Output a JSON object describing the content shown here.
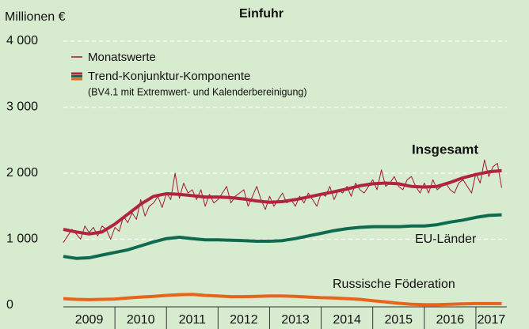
{
  "chart_data": {
    "type": "line",
    "title": "Einfuhr",
    "y_label": "Millionen €",
    "legend_subtitle": "(BV4.1 mit Extremwert- und Kalenderbereinigung)",
    "legend_trend": "Trend-Konjunktur-Komponente",
    "xlim": [
      2009,
      2017.6
    ],
    "xticks": [
      2009,
      2010,
      2011,
      2012,
      2013,
      2014,
      2015,
      2016,
      2017
    ],
    "ylim": [
      0,
      4000
    ],
    "yticks": [
      {
        "value": 0,
        "label": "0"
      },
      {
        "value": 1000,
        "label": "1 000"
      },
      {
        "value": 2000,
        "label": "2 000"
      },
      {
        "value": 3000,
        "label": "3 000"
      },
      {
        "value": 4000,
        "label": "4 000"
      }
    ],
    "grid": true,
    "series": [
      {
        "name": "Monatswerte",
        "color": "#9e1b32",
        "width": 1,
        "x": [
          2009.0,
          2009.083,
          2009.167,
          2009.25,
          2009.333,
          2009.417,
          2009.5,
          2009.583,
          2009.667,
          2009.75,
          2009.833,
          2009.917,
          2010.0,
          2010.083,
          2010.167,
          2010.25,
          2010.333,
          2010.417,
          2010.5,
          2010.583,
          2010.667,
          2010.75,
          2010.833,
          2010.917,
          2011.0,
          2011.083,
          2011.167,
          2011.25,
          2011.333,
          2011.417,
          2011.5,
          2011.583,
          2011.667,
          2011.75,
          2011.833,
          2011.917,
          2012.0,
          2012.083,
          2012.167,
          2012.25,
          2012.333,
          2012.417,
          2012.5,
          2012.583,
          2012.667,
          2012.75,
          2012.833,
          2012.917,
          2013.0,
          2013.083,
          2013.167,
          2013.25,
          2013.333,
          2013.417,
          2013.5,
          2013.583,
          2013.667,
          2013.75,
          2013.833,
          2013.917,
          2014.0,
          2014.083,
          2014.167,
          2014.25,
          2014.333,
          2014.417,
          2014.5,
          2014.583,
          2014.667,
          2014.75,
          2014.833,
          2014.917,
          2015.0,
          2015.083,
          2015.167,
          2015.25,
          2015.333,
          2015.417,
          2015.5,
          2015.583,
          2015.667,
          2015.75,
          2015.833,
          2015.917,
          2016.0,
          2016.083,
          2016.167,
          2016.25,
          2016.333,
          2016.417,
          2016.5,
          2016.583,
          2016.667,
          2016.75,
          2016.833,
          2016.917,
          2017.0,
          2017.083,
          2017.167,
          2017.25,
          2017.333,
          2017.417,
          2017.5
        ],
        "values": [
          950,
          1050,
          1150,
          1080,
          1000,
          1200,
          1100,
          1180,
          1050,
          1200,
          1150,
          1000,
          1180,
          1120,
          1350,
          1250,
          1400,
          1300,
          1600,
          1350,
          1500,
          1550,
          1650,
          1480,
          1700,
          1600,
          2000,
          1620,
          1850,
          1700,
          1750,
          1600,
          1750,
          1500,
          1680,
          1550,
          1600,
          1700,
          1800,
          1550,
          1650,
          1700,
          1750,
          1500,
          1650,
          1800,
          1600,
          1450,
          1650,
          1500,
          1600,
          1700,
          1550,
          1600,
          1500,
          1650,
          1550,
          1700,
          1600,
          1500,
          1700,
          1650,
          1800,
          1600,
          1750,
          1700,
          1800,
          1650,
          1850,
          1750,
          1700,
          1800,
          1900,
          1750,
          2050,
          1800,
          1850,
          1950,
          1800,
          1750,
          1900,
          1950,
          1800,
          1700,
          1850,
          1700,
          1900,
          1750,
          1800,
          1850,
          1750,
          1700,
          1850,
          1900,
          1800,
          1700,
          2000,
          1850,
          2200,
          1950,
          2100,
          2150,
          1780
        ]
      },
      {
        "name": "Insgesamt",
        "color": "#b0243f",
        "width": 4,
        "x": [
          2009,
          2009.25,
          2009.5,
          2009.75,
          2010,
          2010.25,
          2010.5,
          2010.75,
          2011,
          2011.25,
          2011.5,
          2011.75,
          2012,
          2012.25,
          2012.5,
          2012.75,
          2013,
          2013.25,
          2013.5,
          2013.75,
          2014,
          2014.25,
          2014.5,
          2014.75,
          2015,
          2015.25,
          2015.5,
          2015.75,
          2016,
          2016.25,
          2016.5,
          2016.75,
          2017,
          2017.25,
          2017.5
        ],
        "values": [
          1150,
          1110,
          1080,
          1110,
          1230,
          1380,
          1530,
          1650,
          1690,
          1680,
          1660,
          1640,
          1640,
          1630,
          1610,
          1580,
          1560,
          1570,
          1600,
          1640,
          1680,
          1720,
          1760,
          1810,
          1840,
          1850,
          1840,
          1800,
          1790,
          1800,
          1860,
          1930,
          1980,
          2020,
          2040
        ]
      },
      {
        "name": "EU-Länder",
        "color": "#0f6b50",
        "width": 4,
        "x": [
          2009,
          2009.25,
          2009.5,
          2009.75,
          2010,
          2010.25,
          2010.5,
          2010.75,
          2011,
          2011.25,
          2011.5,
          2011.75,
          2012,
          2012.25,
          2012.5,
          2012.75,
          2013,
          2013.25,
          2013.5,
          2013.75,
          2014,
          2014.25,
          2014.5,
          2014.75,
          2015,
          2015.25,
          2015.5,
          2015.75,
          2016,
          2016.25,
          2016.5,
          2016.75,
          2017,
          2017.25,
          2017.5
        ],
        "values": [
          740,
          710,
          720,
          760,
          800,
          840,
          900,
          960,
          1010,
          1030,
          1010,
          990,
          990,
          985,
          980,
          970,
          970,
          980,
          1010,
          1050,
          1090,
          1130,
          1160,
          1180,
          1190,
          1190,
          1190,
          1200,
          1200,
          1220,
          1260,
          1290,
          1330,
          1360,
          1370
        ]
      },
      {
        "name": "Russische Föderation",
        "color": "#e8641c",
        "width": 4,
        "x": [
          2009,
          2009.25,
          2009.5,
          2009.75,
          2010,
          2010.25,
          2010.5,
          2010.75,
          2011,
          2011.25,
          2011.5,
          2011.75,
          2012,
          2012.25,
          2012.5,
          2012.75,
          2013,
          2013.25,
          2013.5,
          2013.75,
          2014,
          2014.25,
          2014.5,
          2014.75,
          2015,
          2015.25,
          2015.5,
          2015.75,
          2016,
          2016.25,
          2016.5,
          2016.75,
          2017,
          2017.25,
          2017.5
        ],
        "values": [
          100,
          90,
          85,
          90,
          95,
          110,
          125,
          135,
          150,
          160,
          165,
          150,
          140,
          130,
          130,
          135,
          140,
          140,
          135,
          125,
          115,
          110,
          100,
          90,
          70,
          50,
          30,
          15,
          10,
          10,
          15,
          20,
          25,
          25,
          25
        ]
      }
    ]
  }
}
